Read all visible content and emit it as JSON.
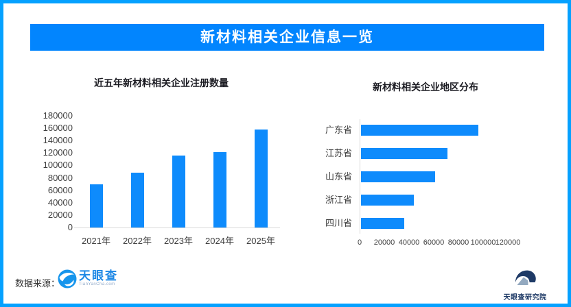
{
  "page": {
    "border_color": "#05A1FF",
    "background_color": "#FFFFFF"
  },
  "header": {
    "title": "新材料相关企业信息一览",
    "bg_color": "#0285FE",
    "text_color": "#FFFFFF"
  },
  "chart_data": [
    {
      "type": "bar",
      "orientation": "vertical",
      "title": "近五年新材料相关企业注册数量",
      "categories": [
        "2021年",
        "2022年",
        "2023年",
        "2024年",
        "2025年"
      ],
      "values": [
        70000,
        88000,
        116000,
        122000,
        158000
      ],
      "ylim": [
        0,
        180000
      ],
      "yticks": [
        0,
        20000,
        40000,
        60000,
        80000,
        100000,
        120000,
        140000,
        160000,
        180000
      ],
      "bar_color": "#0E8BFC",
      "axis_color": "#D8D8D8",
      "grid": false,
      "legend": "none"
    },
    {
      "type": "bar",
      "orientation": "horizontal",
      "title": "新材料相关企业地区分布",
      "categories": [
        "广东省",
        "江苏省",
        "山东省",
        "浙江省",
        "四川省"
      ],
      "values": [
        95000,
        70000,
        60000,
        43000,
        35000
      ],
      "xlim": [
        0,
        120000
      ],
      "xticks": [
        0,
        20000,
        40000,
        60000,
        80000,
        100000,
        120000
      ],
      "bar_color": "#0E8BFC",
      "axis_color": "#D8D8D8",
      "grid": false,
      "legend": "none"
    }
  ],
  "footer": {
    "source_label": "数据来源：",
    "source_logo": {
      "name": "天眼查",
      "subtext": "TianYanCha.com",
      "icon": "tianyancha-swirl",
      "color": "#1E88E5"
    },
    "right_logo": {
      "name": "天眼查研究院",
      "icon": "research-arc-house",
      "color": "#1E3A66"
    }
  }
}
